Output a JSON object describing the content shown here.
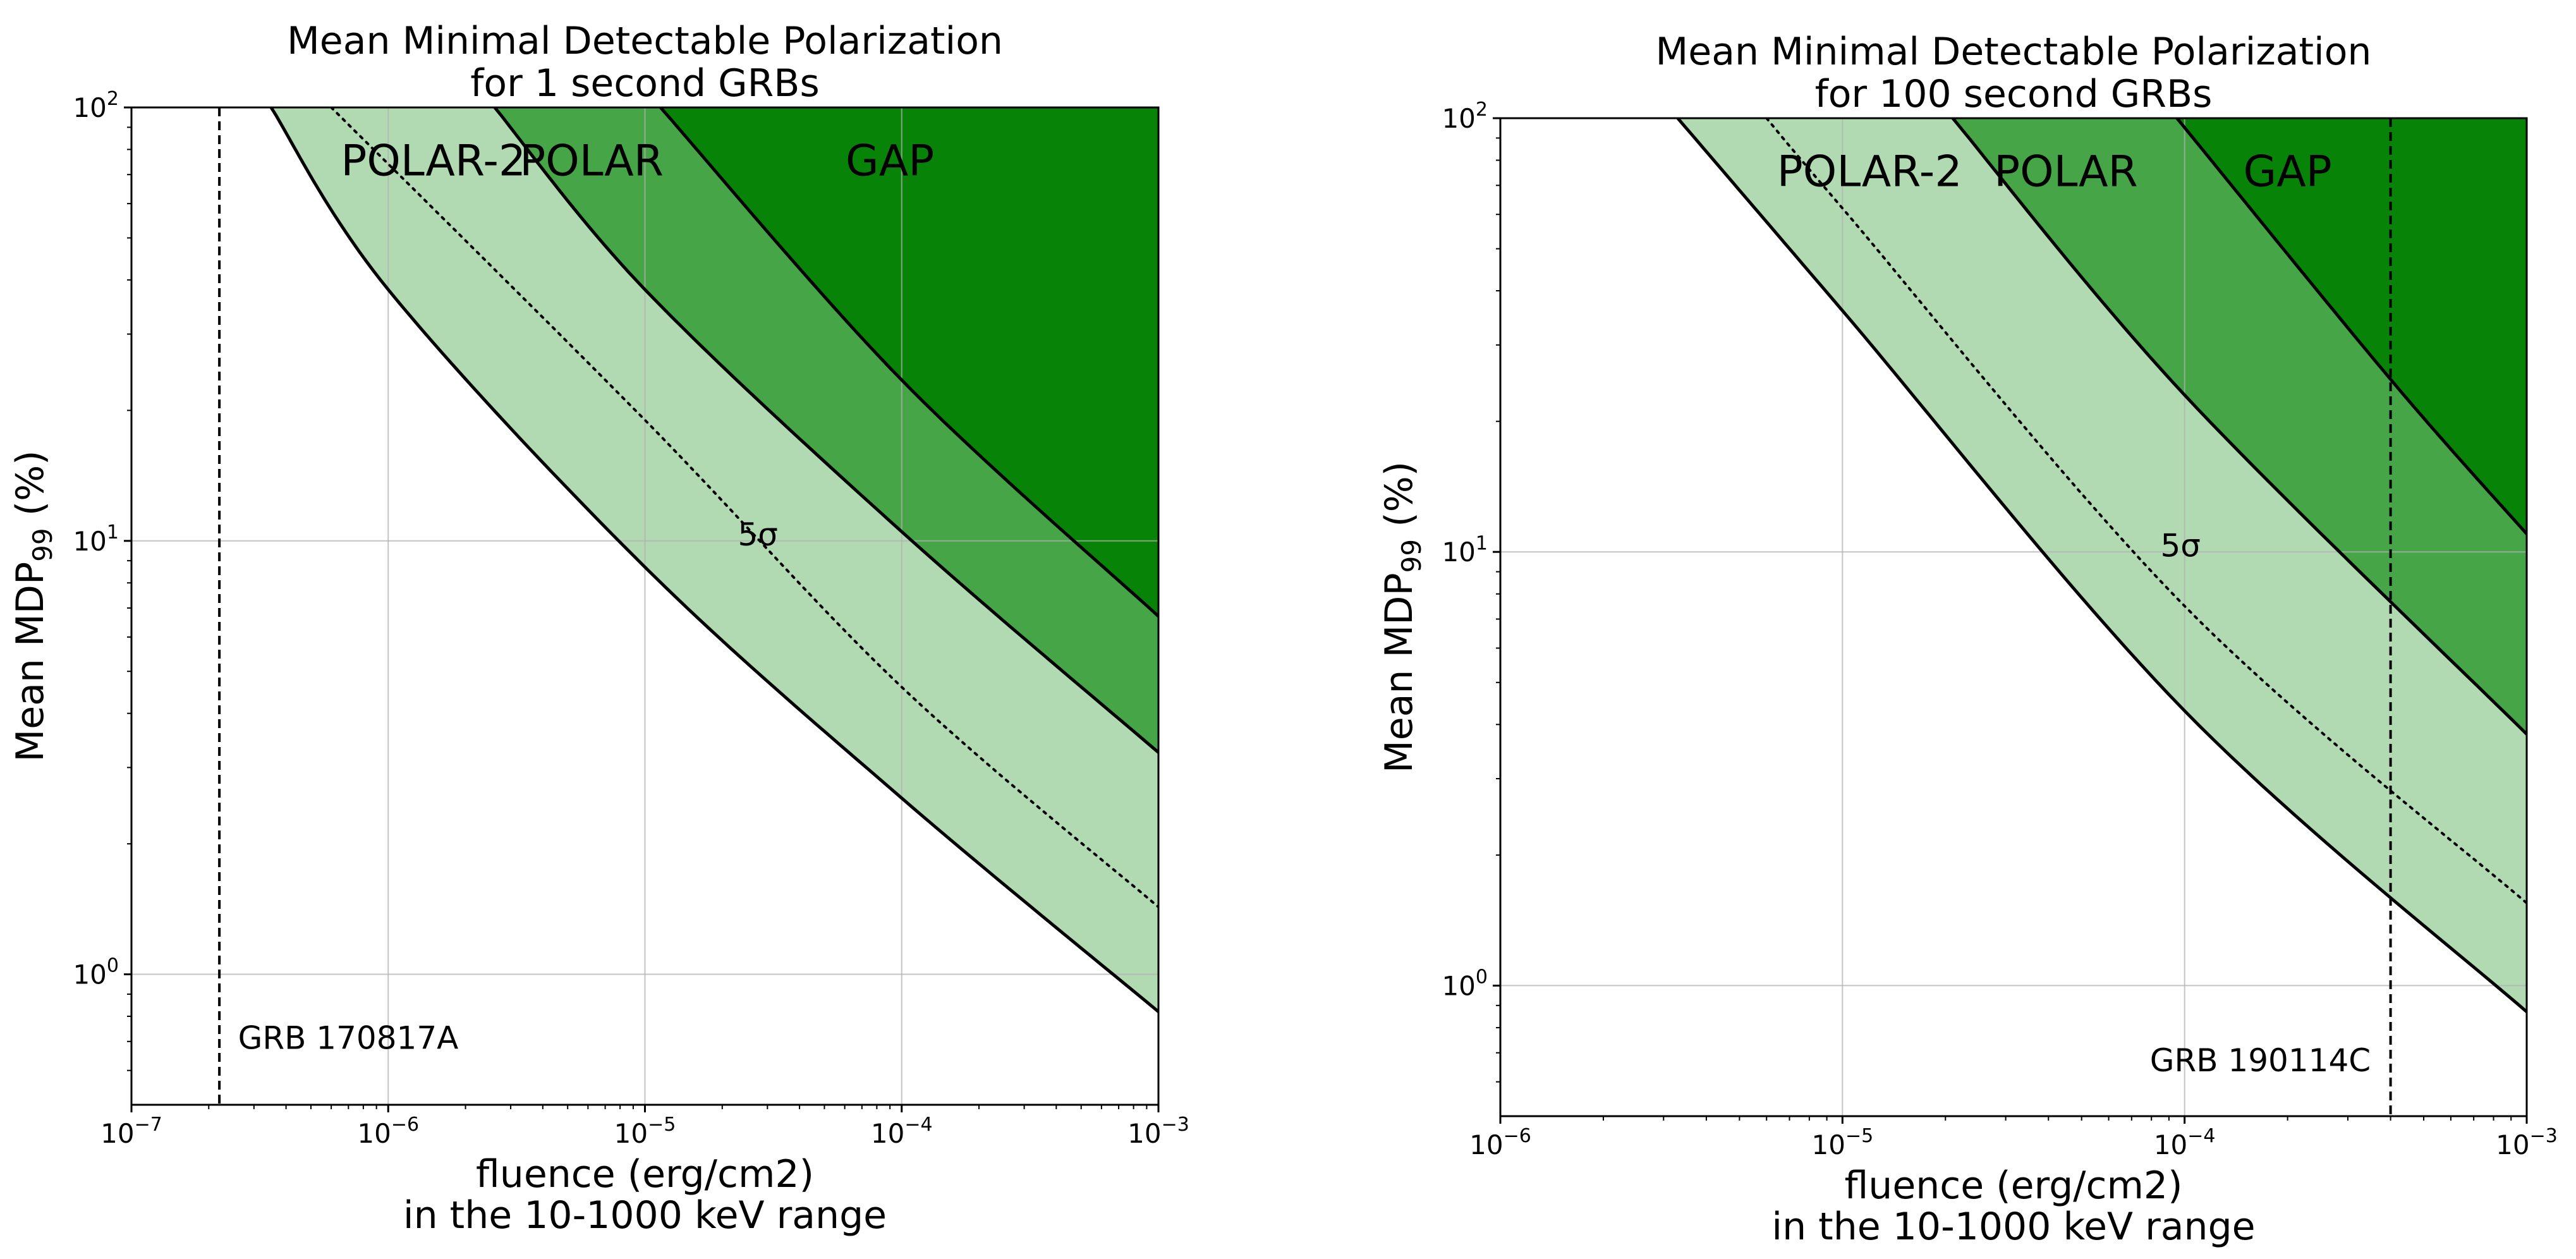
{
  "chart_data": [
    {
      "type": "area",
      "title": "Mean Minimal Detectable Polarization",
      "subtitle": "for 1 second GRBs",
      "xlabel": "fluence (erg/cm2)",
      "xlabel_line2": "in the 10-1000 keV range",
      "ylabel": "Mean MDP",
      "ylabel_sub": "99",
      "ylabel_unit": " (%)",
      "xscale": "log",
      "yscale": "log",
      "xlim": [
        1e-07,
        0.001
      ],
      "ylim": [
        0.5,
        100
      ],
      "grid": true,
      "x_ticks": [
        {
          "base": "10",
          "exp": "−7",
          "value": 1e-07
        },
        {
          "base": "10",
          "exp": "−6",
          "value": 1e-06
        },
        {
          "base": "10",
          "exp": "−5",
          "value": 1e-05
        },
        {
          "base": "10",
          "exp": "−4",
          "value": 0.0001
        },
        {
          "base": "10",
          "exp": "−3",
          "value": 0.001
        }
      ],
      "y_ticks": [
        {
          "base": "10",
          "exp": "0",
          "value": 1
        },
        {
          "base": "10",
          "exp": "1",
          "value": 10
        },
        {
          "base": "10",
          "exp": "2",
          "value": 100
        }
      ],
      "series": [
        {
          "name": "POLAR-2",
          "color": "#b2dab2",
          "x": [
            3.5e-07,
            1e-06,
            1e-05,
            0.0001,
            0.001
          ],
          "y": [
            100,
            38,
            8.7,
            2.55,
            0.82
          ]
        },
        {
          "name": "POLAR",
          "color": "#46a546",
          "x": [
            2.6e-06,
            1e-05,
            0.0001,
            0.001
          ],
          "y": [
            100,
            38,
            10.5,
            3.25
          ]
        },
        {
          "name": "GAP",
          "color": "#078307",
          "x": [
            1.15e-05,
            0.0001,
            0.001
          ],
          "y": [
            100,
            23.5,
            6.7
          ]
        },
        {
          "name": "5σ",
          "style": "dotted",
          "x": [
            6e-07,
            1e-05,
            0.0001,
            0.001
          ],
          "y": [
            100,
            19,
            4.6,
            1.43
          ]
        }
      ],
      "band_labels": [
        {
          "text": "POLAR-2",
          "x": 1.5e-06,
          "y": 75
        },
        {
          "text": "POLAR",
          "x": 6.2e-06,
          "y": 75
        },
        {
          "text": "GAP",
          "x": 9e-05,
          "y": 75
        }
      ],
      "sigma_label": {
        "text": "5σ",
        "x": 2.3e-05,
        "y": 10.3
      },
      "marker": {
        "label": "GRB 170817A",
        "x": 2.2e-07,
        "label_x": 2.6e-07,
        "label_y": 0.71
      }
    },
    {
      "type": "area",
      "title": "Mean Minimal Detectable Polarization",
      "subtitle": "for 100 second GRBs",
      "xlabel": "fluence (erg/cm2)",
      "xlabel_line2": "in the 10-1000 keV range",
      "ylabel": "Mean MDP",
      "ylabel_sub": "99",
      "ylabel_unit": " (%)",
      "xscale": "log",
      "yscale": "log",
      "xlim": [
        1e-06,
        0.001
      ],
      "ylim": [
        0.5,
        100
      ],
      "grid": true,
      "x_ticks": [
        {
          "base": "10",
          "exp": "−6",
          "value": 1e-06
        },
        {
          "base": "10",
          "exp": "−5",
          "value": 1e-05
        },
        {
          "base": "10",
          "exp": "−4",
          "value": 0.0001
        },
        {
          "base": "10",
          "exp": "−3",
          "value": 0.001
        }
      ],
      "y_ticks": [
        {
          "base": "10",
          "exp": "0",
          "value": 1
        },
        {
          "base": "10",
          "exp": "1",
          "value": 10
        },
        {
          "base": "10",
          "exp": "2",
          "value": 100
        }
      ],
      "series": [
        {
          "name": "POLAR-2",
          "color": "#b2dab2",
          "x": [
            3.3e-06,
            1e-05,
            0.0001,
            0.001
          ],
          "y": [
            100,
            36,
            4.3,
            0.87
          ]
        },
        {
          "name": "POLAR",
          "color": "#46a546",
          "x": [
            2.1e-05,
            0.0001,
            0.001
          ],
          "y": [
            100,
            23,
            3.8
          ]
        },
        {
          "name": "GAP",
          "color": "#078307",
          "x": [
            9.5e-05,
            0.0004,
            0.001
          ],
          "y": [
            100,
            25,
            11
          ]
        },
        {
          "name": "5σ",
          "style": "dotted",
          "x": [
            6e-06,
            1e-05,
            0.0001,
            0.001
          ],
          "y": [
            100,
            62,
            7.5,
            1.55
          ]
        }
      ],
      "band_labels": [
        {
          "text": "POLAR-2",
          "x": 1.2e-05,
          "y": 75
        },
        {
          "text": "POLAR",
          "x": 4.5e-05,
          "y": 75
        },
        {
          "text": "GAP",
          "x": 0.0002,
          "y": 75
        }
      ],
      "sigma_label": {
        "text": "5σ",
        "x": 8.5e-05,
        "y": 10.3
      },
      "marker": {
        "label": "GRB 190114C",
        "x": 0.0004,
        "label_x": 0.00035,
        "label_y": 0.67,
        "label_anchor": "end"
      }
    }
  ]
}
